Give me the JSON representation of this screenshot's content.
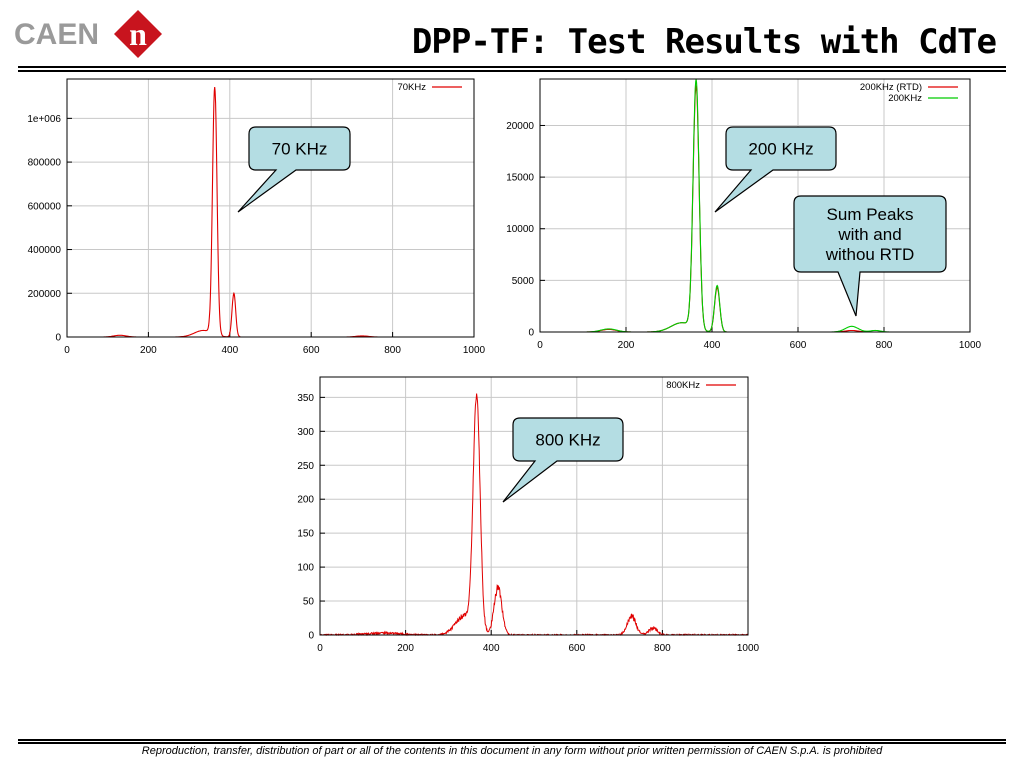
{
  "header": {
    "logo_text": "CAEN",
    "logo_mark": "n",
    "title": "DPP-TF: Test Results with CdTe"
  },
  "footer": {
    "text": "Reproduction, transfer, distribution of part or all of the contents in this document in any form without prior written permission of  CAEN S.p.A. is prohibited"
  },
  "colors": {
    "red": "#e00000",
    "green": "#00cc00",
    "callout_fill": "#b4dde3",
    "grid": "#c8c8c8",
    "logo_red": "#c8141e",
    "logo_gray": "#9a9a9a"
  },
  "chart_data": [
    {
      "type": "line",
      "xlim": [
        0,
        1000
      ],
      "ylim": [
        0,
        1180000
      ],
      "xticks": [
        "0",
        "200",
        "400",
        "600",
        "800",
        "1000"
      ],
      "yticks": [
        "0",
        "200000",
        "400000",
        "600000",
        "800000",
        "1e+006"
      ],
      "ytick_values": [
        0,
        200000,
        400000,
        600000,
        800000,
        1000000
      ],
      "grid": true,
      "legend_position": "top-right",
      "series": [
        {
          "name": "70KHz",
          "color": "#e00000",
          "peaks": [
            {
              "center": 363,
              "sigma": 5.5,
              "amp": 1130000
            },
            {
              "center": 410,
              "sigma": 4.5,
              "amp": 200000
            },
            {
              "center": 335,
              "sigma": 22,
              "amp": 30000
            },
            {
              "center": 130,
              "sigma": 15,
              "amp": 8000
            },
            {
              "center": 725,
              "sigma": 15,
              "amp": 5000
            }
          ],
          "noise": 0
        }
      ],
      "callout": {
        "text": "70 KHz"
      }
    },
    {
      "type": "line",
      "xlim": [
        0,
        1000
      ],
      "ylim": [
        0,
        24500
      ],
      "xticks": [
        "0",
        "200",
        "400",
        "600",
        "800",
        "1000"
      ],
      "yticks": [
        "0",
        "5000",
        "10000",
        "15000",
        "20000"
      ],
      "ytick_values": [
        0,
        5000,
        10000,
        15000,
        20000
      ],
      "grid": true,
      "legend_position": "top-right",
      "series": [
        {
          "name": "200KHz (RTD)",
          "color": "#e00000",
          "peaks": [
            {
              "center": 363,
              "sigma": 7,
              "amp": 23500
            },
            {
              "center": 412,
              "sigma": 6,
              "amp": 4300
            },
            {
              "center": 330,
              "sigma": 25,
              "amp": 900
            },
            {
              "center": 160,
              "sigma": 18,
              "amp": 250
            },
            {
              "center": 725,
              "sigma": 15,
              "amp": 150
            }
          ],
          "noise": 0
        },
        {
          "name": "200KHz",
          "color": "#00cc00",
          "peaks": [
            {
              "center": 363,
              "sigma": 7,
              "amp": 24100
            },
            {
              "center": 412,
              "sigma": 6,
              "amp": 4500
            },
            {
              "center": 330,
              "sigma": 25,
              "amp": 900
            },
            {
              "center": 160,
              "sigma": 18,
              "amp": 300
            },
            {
              "center": 725,
              "sigma": 15,
              "amp": 550
            },
            {
              "center": 780,
              "sigma": 12,
              "amp": 150
            }
          ],
          "noise": 0
        }
      ],
      "callout": {
        "text": "200 KHz"
      },
      "callout2": {
        "lines": [
          "Sum Peaks",
          "with and",
          "withou RTD"
        ]
      }
    },
    {
      "type": "line",
      "xlim": [
        0,
        1000
      ],
      "ylim": [
        0,
        380
      ],
      "xticks": [
        "0",
        "200",
        "400",
        "600",
        "800",
        "1000"
      ],
      "yticks": [
        "0",
        "50",
        "100",
        "150",
        "200",
        "250",
        "300",
        "350"
      ],
      "ytick_values": [
        0,
        50,
        100,
        150,
        200,
        250,
        300,
        350
      ],
      "grid": true,
      "legend_position": "top-right",
      "series": [
        {
          "name": "800KHz",
          "color": "#e00000",
          "peaks": [
            {
              "center": 366,
              "sigma": 8,
              "amp": 340
            },
            {
              "center": 416,
              "sigma": 9,
              "amp": 70
            },
            {
              "center": 340,
              "sigma": 22,
              "amp": 30
            },
            {
              "center": 150,
              "sigma": 40,
              "amp": 3
            },
            {
              "center": 728,
              "sigma": 10,
              "amp": 28
            },
            {
              "center": 778,
              "sigma": 10,
              "amp": 10
            }
          ],
          "noise": 4
        }
      ],
      "callout": {
        "text": "800 KHz"
      }
    }
  ]
}
